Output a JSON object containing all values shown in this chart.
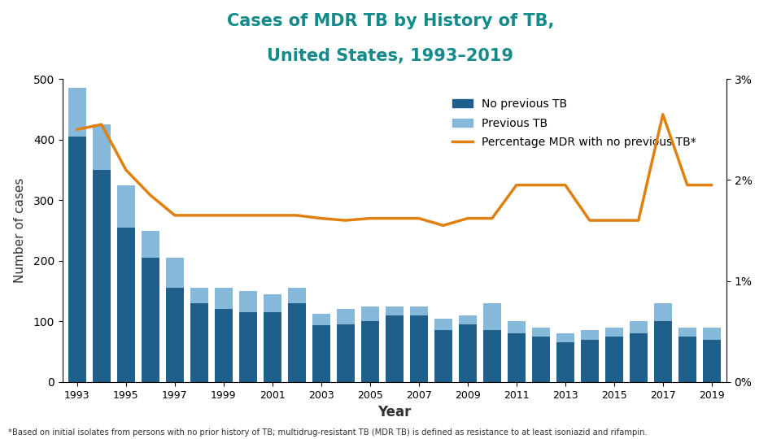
{
  "years": [
    1993,
    1994,
    1995,
    1996,
    1997,
    1998,
    1999,
    2000,
    2001,
    2002,
    2003,
    2004,
    2005,
    2006,
    2007,
    2008,
    2009,
    2010,
    2011,
    2012,
    2013,
    2014,
    2015,
    2016,
    2017,
    2018,
    2019
  ],
  "no_prev_tb": [
    405,
    350,
    255,
    205,
    155,
    130,
    120,
    115,
    115,
    130,
    93,
    95,
    100,
    110,
    110,
    85,
    95,
    85,
    80,
    75,
    65,
    70,
    75,
    80,
    100,
    75,
    70
  ],
  "prev_tb": [
    80,
    75,
    70,
    45,
    50,
    25,
    35,
    35,
    30,
    25,
    20,
    25,
    25,
    15,
    15,
    20,
    15,
    45,
    20,
    15,
    15,
    15,
    15,
    20,
    30,
    15,
    20
  ],
  "pct_line": [
    2.5,
    2.55,
    2.1,
    1.85,
    1.65,
    1.65,
    1.65,
    1.65,
    1.65,
    1.65,
    1.62,
    1.6,
    1.62,
    1.62,
    1.62,
    1.55,
    1.62,
    1.62,
    1.95,
    1.95,
    1.95,
    1.6,
    1.6,
    1.6,
    2.65,
    1.95,
    1.95
  ],
  "title_line1": "Cases of MDR TB by History of TB,",
  "title_line2": "United States, 1993–2019",
  "xlabel": "Year",
  "ylabel": "Number of cases",
  "ylim_left": [
    0,
    500
  ],
  "ylim_right": [
    0,
    3
  ],
  "yticks_left": [
    0,
    100,
    200,
    300,
    400,
    500
  ],
  "yticks_right": [
    0,
    1,
    2,
    3
  ],
  "ytick_right_labels": [
    "0%",
    "1%",
    "2%",
    "3%"
  ],
  "bar_color_dark": "#1f5f8b",
  "bar_color_light": "#85b8d9",
  "line_color": "#e08010",
  "title_color": "#148a8a",
  "footnote": "*Based on initial isolates from persons with no prior history of TB; multidrug-resistant TB (MDR TB) is defined as resistance to at least isoniazid and rifampin.",
  "legend_labels": [
    "No previous TB",
    "Previous TB",
    "Percentage MDR with no previous TB*"
  ]
}
